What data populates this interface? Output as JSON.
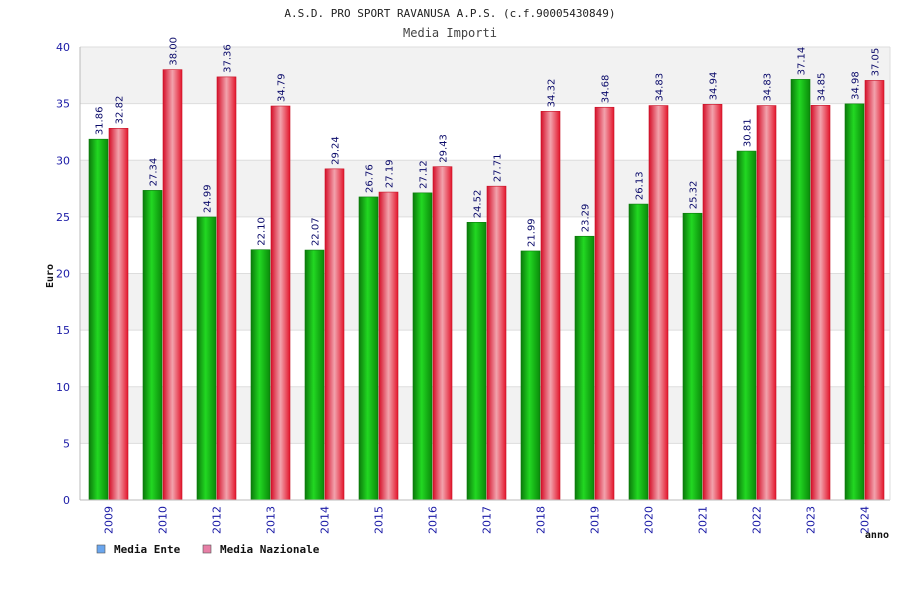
{
  "chart_data": {
    "type": "bar",
    "title": "A.S.D. PRO SPORT RAVANUSA A.P.S. (c.f.90005430849)",
    "subtitle": "Media Importi",
    "xlabel": "anno",
    "ylabel": "Euro",
    "ylim": [
      0,
      40
    ],
    "yticks": [
      0,
      5,
      10,
      15,
      20,
      25,
      30,
      35,
      40
    ],
    "grid": true,
    "legend_position": "bottom-left",
    "categories": [
      "2009",
      "2010",
      "2012",
      "2013",
      "2014",
      "2015",
      "2016",
      "2017",
      "2018",
      "2019",
      "2020",
      "2021",
      "2022",
      "2023",
      "2024"
    ],
    "series": [
      {
        "name": "Media Ente",
        "color": "#11b011",
        "legend_color": "#6aa6ee",
        "values": [
          31.86,
          27.34,
          24.99,
          22.1,
          22.07,
          26.76,
          27.12,
          24.52,
          21.99,
          23.29,
          26.13,
          25.32,
          30.81,
          37.14,
          34.98
        ],
        "labels": [
          "31.86",
          "27.34",
          "24.99",
          "22.10",
          "22.07",
          "26.76",
          "27.12",
          "24.52",
          "21.99",
          "23.29",
          "26.13",
          "25.32",
          "30.81",
          "37.14",
          "34.98"
        ]
      },
      {
        "name": "Media Nazionale",
        "color": "#e8182c",
        "legend_color": "#e77fa6",
        "values": [
          32.82,
          38.0,
          37.36,
          34.79,
          29.24,
          27.19,
          29.43,
          27.71,
          34.32,
          34.68,
          34.83,
          34.94,
          34.83,
          34.85,
          37.05
        ],
        "labels": [
          "32.82",
          "38.00",
          "37.36",
          "34.79",
          "29.24",
          "27.19",
          "29.43",
          "27.71",
          "34.32",
          "34.68",
          "34.83",
          "34.94",
          "34.83",
          "34.85",
          "37.05"
        ]
      }
    ]
  }
}
